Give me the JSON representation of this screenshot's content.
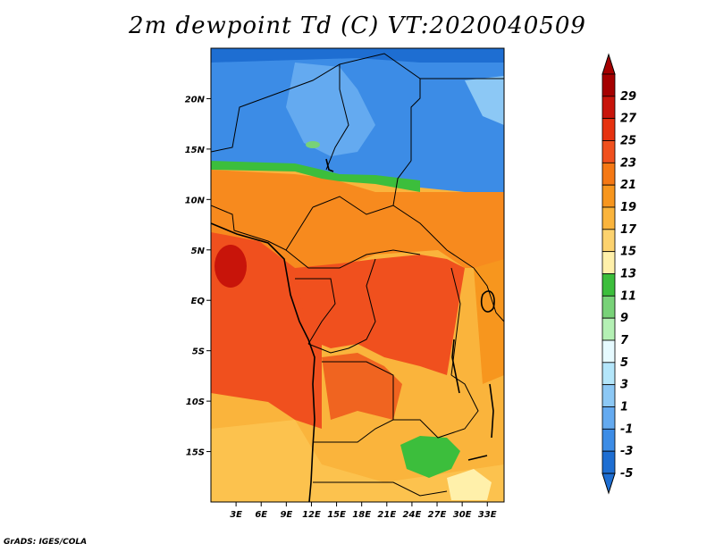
{
  "title": "2m dewpoint Td (C) VT:2020040509",
  "credit": "GrADS: IGES/COLA",
  "map": {
    "lon_range": [
      0,
      35
    ],
    "lat_range": [
      -20,
      25
    ],
    "lat_ticks": [
      {
        "value": 20,
        "label": "20N"
      },
      {
        "value": 15,
        "label": "15N"
      },
      {
        "value": 10,
        "label": "10N"
      },
      {
        "value": 5,
        "label": "5N"
      },
      {
        "value": 0,
        "label": "EQ"
      },
      {
        "value": -5,
        "label": "5S"
      },
      {
        "value": -10,
        "label": "10S"
      },
      {
        "value": -15,
        "label": "15S"
      }
    ],
    "lon_ticks": [
      {
        "value": 3,
        "label": "3E"
      },
      {
        "value": 6,
        "label": "6E"
      },
      {
        "value": 9,
        "label": "9E"
      },
      {
        "value": 12,
        "label": "12E"
      },
      {
        "value": 15,
        "label": "15E"
      },
      {
        "value": 18,
        "label": "18E"
      },
      {
        "value": 21,
        "label": "21E"
      },
      {
        "value": 24,
        "label": "24E"
      },
      {
        "value": 27,
        "label": "27E"
      },
      {
        "value": 30,
        "label": "30E"
      },
      {
        "value": 33,
        "label": "33E"
      }
    ]
  },
  "colorbar": {
    "levels": [
      {
        "label": "29",
        "color": "#a50000"
      },
      {
        "label": "27",
        "color": "#c8140a"
      },
      {
        "label": "25",
        "color": "#e6320f"
      },
      {
        "label": "23",
        "color": "#f0501e"
      },
      {
        "label": "21",
        "color": "#f57814"
      },
      {
        "label": "19",
        "color": "#f7961e"
      },
      {
        "label": "17",
        "color": "#fab43c"
      },
      {
        "label": "15",
        "color": "#fcd26e"
      },
      {
        "label": "13",
        "color": "#fff0aa"
      },
      {
        "label": "11",
        "color": "#3cbe3c"
      },
      {
        "label": "9",
        "color": "#78d278"
      },
      {
        "label": "7",
        "color": "#b4f0b4"
      },
      {
        "label": "5",
        "color": "#e6faff"
      },
      {
        "label": "3",
        "color": "#b4e6fa"
      },
      {
        "label": "1",
        "color": "#8cc8f5"
      },
      {
        "label": "-1",
        "color": "#64aaf0"
      },
      {
        "label": "-3",
        "color": "#3c8ce6"
      },
      {
        "label": "-5",
        "color": "#1e6ed2"
      }
    ],
    "top_color": "#a50000",
    "bottom_color": "#1e6ed2"
  }
}
